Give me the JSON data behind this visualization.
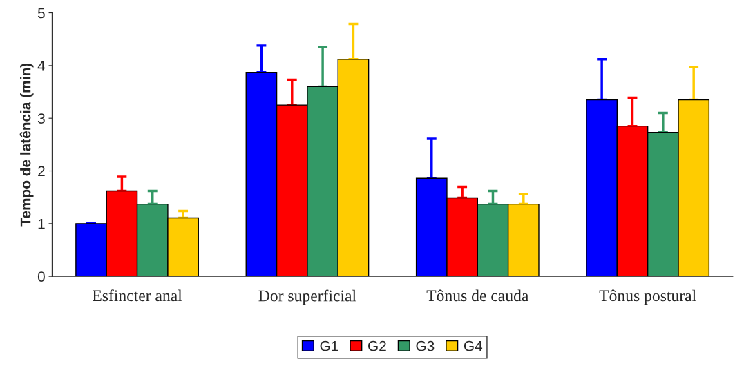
{
  "chart_data": {
    "type": "bar",
    "ylabel": "Tempo de latência (min)",
    "categories": [
      "Esfincter anal",
      "Dor superficial",
      "Tônus de cauda",
      "Tônus postural"
    ],
    "series": [
      {
        "name": "G1",
        "color": "#0000ff",
        "values": [
          1.0,
          3.87,
          1.86,
          3.35
        ],
        "errors": [
          [
            1.0,
            1.01
          ],
          [
            3.87,
            4.38
          ],
          [
            1.86,
            2.61
          ],
          [
            3.35,
            4.12
          ]
        ]
      },
      {
        "name": "G2",
        "color": "#ff0000",
        "values": [
          1.62,
          3.25,
          1.49,
          2.85
        ],
        "errors": [
          [
            1.62,
            1.89
          ],
          [
            3.25,
            3.73
          ],
          [
            1.49,
            1.7
          ],
          [
            2.85,
            3.39
          ]
        ]
      },
      {
        "name": "G3",
        "color": "#339966",
        "values": [
          1.37,
          3.6,
          1.37,
          2.73
        ],
        "errors": [
          [
            1.37,
            1.62
          ],
          [
            3.6,
            4.35
          ],
          [
            1.37,
            1.62
          ],
          [
            2.73,
            3.1
          ]
        ]
      },
      {
        "name": "G4",
        "color": "#ffcc00",
        "values": [
          1.11,
          4.12,
          1.37,
          3.35
        ],
        "errors": [
          [
            1.11,
            1.24
          ],
          [
            4.12,
            4.79
          ],
          [
            1.37,
            1.56
          ],
          [
            3.35,
            3.97
          ]
        ]
      }
    ],
    "ylim": [
      0,
      5
    ],
    "yticks": [
      0,
      1,
      2,
      3,
      4,
      5
    ],
    "grid": false,
    "legend": "bottom"
  }
}
